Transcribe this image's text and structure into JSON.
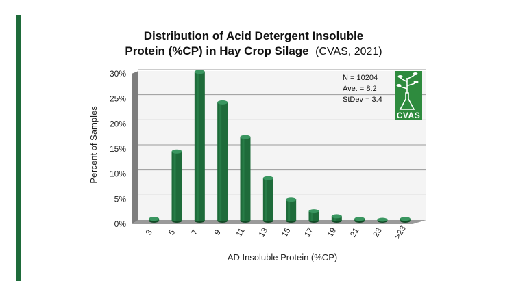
{
  "page": {
    "accent_color": "#1e6b3a"
  },
  "chart_data": {
    "type": "bar",
    "title_line1": "Distribution of Acid Detergent Insoluble",
    "title_line2": "Protein (%CP) in Hay Crop Silage",
    "title_source": "(CVAS, 2021)",
    "xlabel": "AD Insoluble Protein (%CP)",
    "ylabel": "Percent of Samples",
    "categories": [
      "3",
      "5",
      "7",
      "9",
      "11",
      "13",
      "15",
      "17",
      "19",
      "21",
      "23",
      ">23"
    ],
    "values": [
      0.4,
      13.8,
      29.7,
      23.6,
      16.7,
      8.5,
      4.2,
      1.9,
      0.9,
      0.4,
      0.2,
      0.4
    ],
    "yticks": [
      "0%",
      "5%",
      "10%",
      "15%",
      "20%",
      "25%",
      "30%"
    ],
    "ylim": [
      0,
      30
    ],
    "grid": true,
    "bar_color": "#1e6b3a",
    "stats": {
      "n": "N = 10204",
      "ave": "Ave. = 8.2",
      "stdev": "StDev = 3.4"
    },
    "logo_text": "CVAS",
    "logo_color": "#2e8b3e"
  }
}
